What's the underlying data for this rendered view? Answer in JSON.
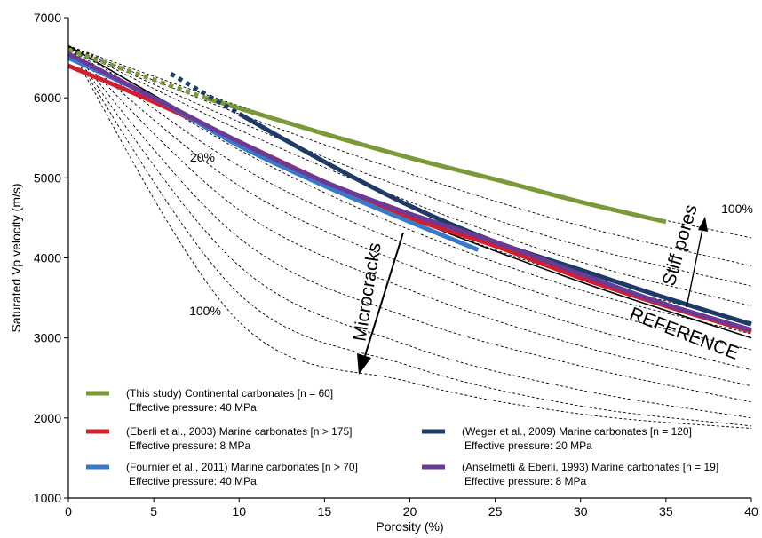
{
  "chart_data": {
    "type": "line",
    "xlabel": "Porosity (%)",
    "ylabel": "Saturated Vp velocity (m/s)",
    "xlim": [
      0,
      40
    ],
    "ylim": [
      1000,
      7000
    ],
    "xticks": [
      "0",
      "5",
      "10",
      "15",
      "20",
      "25",
      "30",
      "35",
      "40"
    ],
    "yticks": [
      "1000",
      "2000",
      "3000",
      "4000",
      "5000",
      "6000",
      "7000"
    ],
    "grid": false,
    "legend_position": "bottom-left",
    "reference_curves": [
      {
        "x": [
          0,
          10,
          20,
          30,
          40
        ],
        "y": [
          6650,
          5900,
          5250,
          4700,
          4250
        ]
      },
      {
        "x": [
          0,
          10,
          20,
          30,
          40
        ],
        "y": [
          6650,
          5800,
          5050,
          4400,
          3900
        ]
      },
      {
        "x": [
          0,
          10,
          20,
          30,
          40
        ],
        "y": [
          6650,
          5700,
          4850,
          4150,
          3650
        ]
      },
      {
        "x": [
          0,
          10,
          20,
          30,
          40
        ],
        "y": [
          6650,
          5600,
          4700,
          3950,
          3400
        ]
      },
      {
        "x": [
          0,
          10,
          20,
          30,
          40
        ],
        "y": [
          6650,
          5450,
          4500,
          3750,
          3200
        ]
      },
      {
        "x": [
          0,
          10,
          20,
          30,
          40
        ],
        "y": [
          6650,
          5350,
          4350,
          3600,
          3050
        ]
      },
      {
        "x": [
          0,
          10,
          20,
          30,
          40
        ],
        "y": [
          6650,
          5150,
          4150,
          3400,
          2850
        ]
      },
      {
        "x": [
          0,
          10,
          20,
          30,
          40
        ],
        "y": [
          6650,
          4900,
          3900,
          3150,
          2600
        ]
      },
      {
        "x": [
          0,
          10,
          20,
          30,
          40
        ],
        "y": [
          6650,
          4600,
          3600,
          2900,
          2400
        ]
      },
      {
        "x": [
          0,
          10,
          20,
          30,
          40
        ],
        "y": [
          6650,
          4250,
          3250,
          2650,
          2200
        ]
      },
      {
        "x": [
          0,
          10,
          20,
          30,
          40
        ],
        "y": [
          6650,
          3900,
          2900,
          2350,
          2000
        ]
      },
      {
        "x": [
          0,
          10,
          20,
          30,
          40
        ],
        "y": [
          6650,
          3550,
          2650,
          2150,
          1900
        ]
      },
      {
        "x": [
          0,
          10,
          20,
          30,
          40
        ],
        "y": [
          6650,
          3200,
          2450,
          2050,
          1870
        ]
      }
    ],
    "reference_line": {
      "label": "REFERENCE",
      "x": [
        0,
        10,
        20,
        30,
        40
      ],
      "y": [
        6650,
        5450,
        4500,
        3700,
        3000
      ]
    },
    "series": [
      {
        "name": "(This study) Continental carbonates [n = 60]",
        "subtitle": "Effective pressure: 40 MPa",
        "color": "#7a9a3a",
        "dashed_until": 8,
        "x": [
          0,
          8,
          15,
          20,
          25,
          30,
          35
        ],
        "y": [
          6600,
          6000,
          5550,
          5250,
          4980,
          4700,
          4450
        ]
      },
      {
        "name": "(Eberli et al., 2003) Marine carbonates [n > 175]",
        "subtitle": "Effective pressure: 8 MPa",
        "color": "#d0202e",
        "dashed_until": 0,
        "x": [
          0,
          5,
          10,
          15,
          20,
          25,
          30,
          35,
          40
        ],
        "y": [
          6400,
          5950,
          5450,
          4950,
          4500,
          4150,
          3750,
          3400,
          3080
        ]
      },
      {
        "name": "(Fournier et al., 2011) Marine carbonates [n > 70]",
        "subtitle": "Effective pressure: 40 MPa",
        "color": "#3a78c8",
        "dashed_until": 0,
        "x": [
          0,
          5,
          10,
          15,
          20,
          24
        ],
        "y": [
          6500,
          6000,
          5400,
          4900,
          4450,
          4100
        ]
      },
      {
        "name": "(Weger et al., 2009) Marine carbonates [n = 120]",
        "subtitle": "Effective pressure: 20 MPa",
        "color": "#1e3a66",
        "dashed_until": 10,
        "x": [
          6,
          10,
          15,
          20,
          25,
          30,
          35,
          40
        ],
        "y": [
          6300,
          5800,
          5200,
          4650,
          4200,
          3850,
          3500,
          3170
        ]
      },
      {
        "name": "(Anselmetti & Eberli, 1993) Marine carbonates [n = 19]",
        "subtitle": "Effective pressure: 8 MPa",
        "color": "#6a3a96",
        "dashed_until": 0,
        "x": [
          0,
          5,
          10,
          15,
          20,
          25,
          30,
          35,
          40
        ],
        "y": [
          6550,
          6000,
          5450,
          4950,
          4550,
          4200,
          3800,
          3420,
          3100
        ]
      }
    ],
    "annotations": {
      "microcracks": "Microcracks",
      "stiff_pores": "Stiff pores",
      "pct_20": "20%",
      "pct_100_left": "100%",
      "pct_100_right": "100%"
    }
  }
}
